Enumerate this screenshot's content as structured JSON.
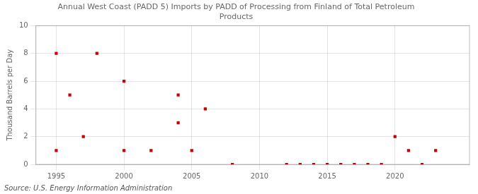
{
  "chart_data": {
    "type": "scatter",
    "title": "Annual West Coast (PADD 5) Imports by PADD of Processing from Finland of Total Petroleum\nProducts",
    "ylabel": "Thousand Barrels per Day",
    "annotation": "Source: U.S. Energy Information Administration",
    "x": [
      1995,
      1995,
      1996,
      1997,
      1998,
      2000,
      2000,
      2002,
      2004,
      2004,
      2005,
      2006,
      2008,
      2012,
      2013,
      2014,
      2015,
      2016,
      2017,
      2018,
      2019,
      2020,
      2021,
      2022,
      2023
    ],
    "values": [
      1,
      8,
      5,
      2,
      8,
      6,
      1,
      1,
      5,
      3,
      1,
      4,
      0,
      0,
      0,
      0,
      0,
      0,
      0,
      0,
      0,
      2,
      1,
      0,
      1
    ],
    "color": "#cc0000",
    "marker": "square",
    "xlim": [
      1993.5,
      2025.5
    ],
    "ylim": [
      0,
      10
    ],
    "xticks": [
      1995,
      2000,
      2005,
      2010,
      2015,
      2020
    ],
    "yticks": [
      0,
      2,
      4,
      6,
      8,
      10
    ],
    "grid": true
  }
}
